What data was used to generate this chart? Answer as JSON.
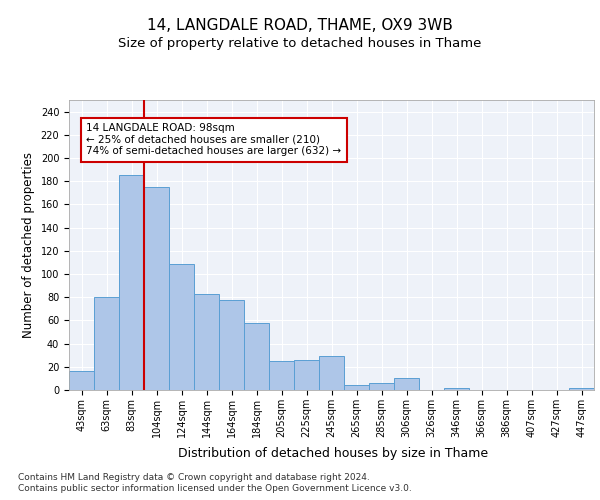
{
  "title": "14, LANGDALE ROAD, THAME, OX9 3WB",
  "subtitle": "Size of property relative to detached houses in Thame",
  "xlabel": "Distribution of detached houses by size in Thame",
  "ylabel": "Number of detached properties",
  "categories": [
    "43sqm",
    "63sqm",
    "83sqm",
    "104sqm",
    "124sqm",
    "144sqm",
    "164sqm",
    "184sqm",
    "205sqm",
    "225sqm",
    "245sqm",
    "265sqm",
    "285sqm",
    "306sqm",
    "326sqm",
    "346sqm",
    "366sqm",
    "386sqm",
    "407sqm",
    "427sqm",
    "447sqm"
  ],
  "values": [
    16,
    80,
    185,
    175,
    109,
    83,
    78,
    58,
    25,
    26,
    29,
    4,
    6,
    10,
    0,
    2,
    0,
    0,
    0,
    0,
    2
  ],
  "bar_color": "#aec6e8",
  "bar_edge_color": "#5a9fd4",
  "vline_index": 2.5,
  "vline_color": "#cc0000",
  "annotation_text": "14 LANGDALE ROAD: 98sqm\n← 25% of detached houses are smaller (210)\n74% of semi-detached houses are larger (632) →",
  "annotation_box_color": "#ffffff",
  "annotation_box_edge_color": "#cc0000",
  "ylim": [
    0,
    250
  ],
  "yticks": [
    0,
    20,
    40,
    60,
    80,
    100,
    120,
    140,
    160,
    180,
    200,
    220,
    240
  ],
  "background_color": "#eef2f9",
  "grid_color": "#ffffff",
  "footer": "Contains HM Land Registry data © Crown copyright and database right 2024.\nContains public sector information licensed under the Open Government Licence v3.0.",
  "title_fontsize": 11,
  "subtitle_fontsize": 9.5,
  "xlabel_fontsize": 9,
  "ylabel_fontsize": 8.5,
  "tick_fontsize": 7,
  "annotation_fontsize": 7.5,
  "footer_fontsize": 6.5
}
